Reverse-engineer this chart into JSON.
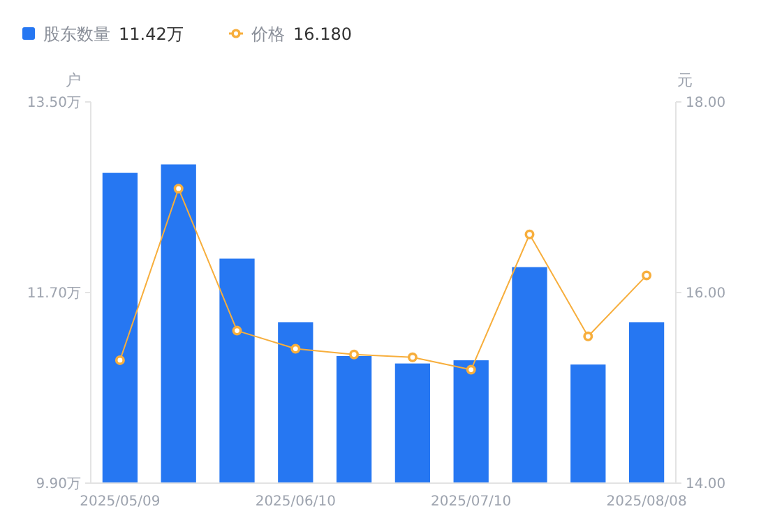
{
  "chart_data": {
    "type": "bar",
    "ylabel": "户",
    "y2label": "元",
    "categories": [
      "2025/05/09",
      null,
      null,
      "2025/06/10",
      null,
      null,
      "2025/07/10",
      null,
      null,
      "2025/08/08"
    ],
    "series": [
      {
        "name": "股东数量",
        "color": "#2677f2",
        "values": [
          12.83,
          12.91,
          12.02,
          11.42,
          11.1,
          11.03,
          11.06,
          11.94,
          11.02,
          11.42
        ]
      },
      {
        "name": "价格",
        "type": "line",
        "axis": "y2",
        "color": "#f7ae3c",
        "marker": "circle",
        "values": [
          15.29,
          17.09,
          15.6,
          15.41,
          15.35,
          15.32,
          15.19,
          16.61,
          15.54,
          16.18
        ]
      }
    ],
    "ylim": [
      9.9,
      13.5
    ],
    "yticks": [
      {
        "value": 9.9,
        "label": "9.90万"
      },
      {
        "value": 11.7,
        "label": "11.70万"
      },
      {
        "value": 13.5,
        "label": "13.50万"
      }
    ],
    "y2lim": [
      14,
      18
    ],
    "y2ticks": [
      {
        "value": 14,
        "label": "14.00"
      },
      {
        "value": 16,
        "label": "16.00"
      },
      {
        "value": 18,
        "label": "18.00"
      }
    ],
    "legend": "top left",
    "grid": false,
    "annotations": [
      "11.42万",
      "16.180"
    ]
  }
}
